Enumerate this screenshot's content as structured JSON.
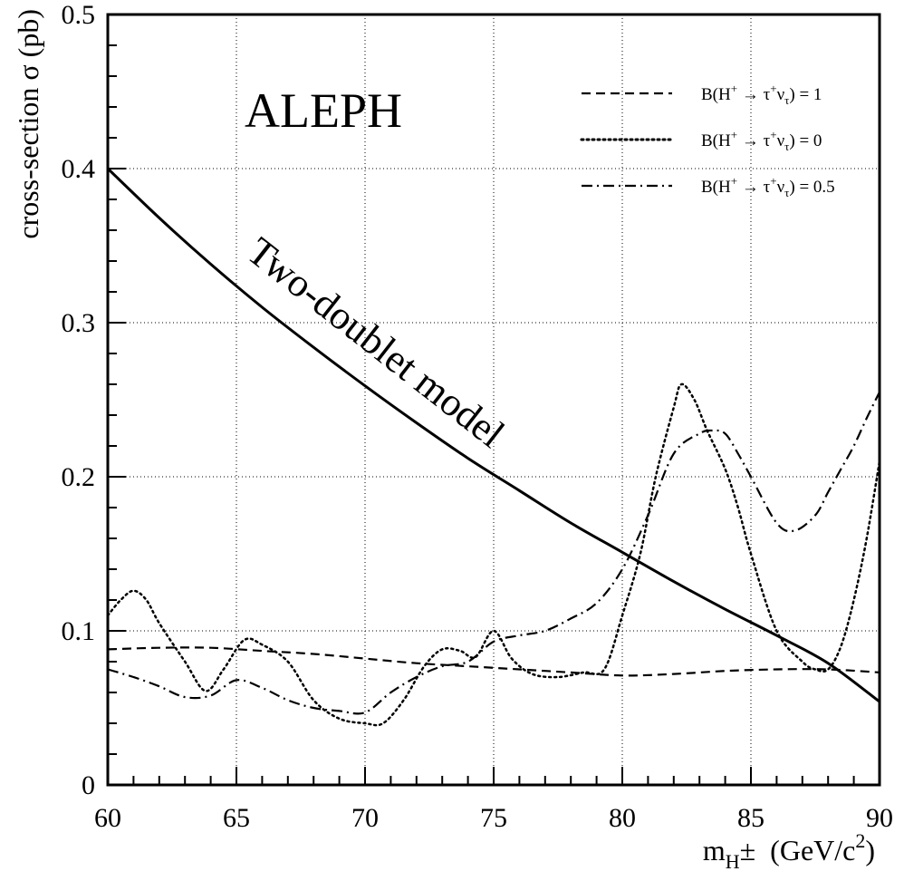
{
  "chart_data": {
    "type": "line",
    "experiment_label": "ALEPH",
    "curve_annotation": "Two-doublet model",
    "ylabel": "cross-section σ (pb)",
    "xlabel": {
      "main": "m",
      "sub": "H",
      "pm": "±",
      "unit_open": "  (GeV/c",
      "unit_exp": "2",
      "unit_close": ")"
    },
    "xlim": [
      60,
      90
    ],
    "ylim": [
      0,
      0.5
    ],
    "x_ticks": [
      60,
      65,
      70,
      75,
      80,
      85,
      90
    ],
    "y_ticks": [
      0,
      0.1,
      0.2,
      0.3,
      0.4,
      0.5
    ],
    "x_tick_labels": [
      "60",
      "65",
      "70",
      "75",
      "80",
      "85",
      "90"
    ],
    "y_tick_labels": [
      "0",
      "0.1",
      "0.2",
      "0.3",
      "0.4",
      "0.5"
    ],
    "grid": true,
    "legend_position": "top-right",
    "legend": [
      {
        "prefix": "B(H",
        "sup1": "+",
        "arrow": " → τ",
        "sup2": "+",
        "nu": "ν",
        "sub": "τ",
        "suffix": ") = 1",
        "style": "dashed"
      },
      {
        "prefix": "B(H",
        "sup1": "+",
        "arrow": " → τ",
        "sup2": "+",
        "nu": "ν",
        "sub": "τ",
        "suffix": ") = 0",
        "style": "dotted"
      },
      {
        "prefix": "B(H",
        "sup1": "+",
        "arrow": " → τ",
        "sup2": "+",
        "nu": "ν",
        "sub": "τ",
        "suffix": ") = 0.5",
        "style": "dashdot"
      }
    ],
    "series": [
      {
        "style": "solid",
        "x": [
          60,
          62,
          64,
          66,
          68,
          70,
          72,
          74,
          76,
          78,
          80,
          82,
          84,
          86,
          88,
          90
        ],
        "y": [
          0.4,
          0.368,
          0.338,
          0.31,
          0.284,
          0.259,
          0.235,
          0.212,
          0.191,
          0.17,
          0.151,
          0.132,
          0.114,
          0.097,
          0.079,
          0.054
        ]
      },
      {
        "style": "dashed",
        "x": [
          60,
          62,
          64,
          66,
          68,
          70,
          72,
          74,
          76,
          78,
          80,
          82,
          84,
          86,
          88,
          90
        ],
        "y": [
          0.088,
          0.089,
          0.089,
          0.087,
          0.085,
          0.082,
          0.079,
          0.077,
          0.075,
          0.073,
          0.071,
          0.072,
          0.074,
          0.075,
          0.075,
          0.073
        ]
      },
      {
        "style": "dotted",
        "x": [
          60,
          60.5,
          61,
          61.5,
          62,
          63,
          63.8,
          64.5,
          65.3,
          66,
          67,
          68,
          69,
          70,
          70.7,
          71.5,
          72.3,
          73,
          73.7,
          74.3,
          75,
          75.7,
          76.5,
          77.5,
          78.5,
          79.3,
          80,
          80.7,
          81.3,
          82,
          82.3,
          82.8,
          83.3,
          84,
          84.5,
          85,
          86,
          87,
          87.5,
          88,
          88.5,
          89,
          89.5,
          90
        ],
        "y": [
          0.11,
          0.12,
          0.126,
          0.12,
          0.105,
          0.08,
          0.061,
          0.075,
          0.094,
          0.091,
          0.08,
          0.055,
          0.043,
          0.04,
          0.04,
          0.055,
          0.077,
          0.088,
          0.087,
          0.083,
          0.1,
          0.082,
          0.072,
          0.07,
          0.073,
          0.075,
          0.11,
          0.15,
          0.2,
          0.245,
          0.26,
          0.25,
          0.23,
          0.205,
          0.18,
          0.15,
          0.1,
          0.08,
          0.075,
          0.075,
          0.09,
          0.12,
          0.16,
          0.21
        ]
      },
      {
        "style": "dashdot",
        "x": [
          60,
          61,
          62,
          63,
          64,
          65,
          66,
          67,
          68,
          69,
          70,
          71,
          72,
          73,
          74,
          75,
          76,
          77,
          78,
          79,
          80,
          81,
          82,
          83,
          83.5,
          84,
          84.5,
          85,
          86,
          86.7,
          87.5,
          88,
          88.5,
          89,
          89.5,
          90
        ],
        "y": [
          0.075,
          0.07,
          0.064,
          0.057,
          0.058,
          0.068,
          0.063,
          0.055,
          0.05,
          0.048,
          0.047,
          0.06,
          0.07,
          0.077,
          0.08,
          0.093,
          0.097,
          0.1,
          0.108,
          0.118,
          0.14,
          0.175,
          0.215,
          0.228,
          0.23,
          0.228,
          0.215,
          0.2,
          0.17,
          0.165,
          0.175,
          0.19,
          0.205,
          0.22,
          0.238,
          0.255
        ]
      }
    ]
  }
}
